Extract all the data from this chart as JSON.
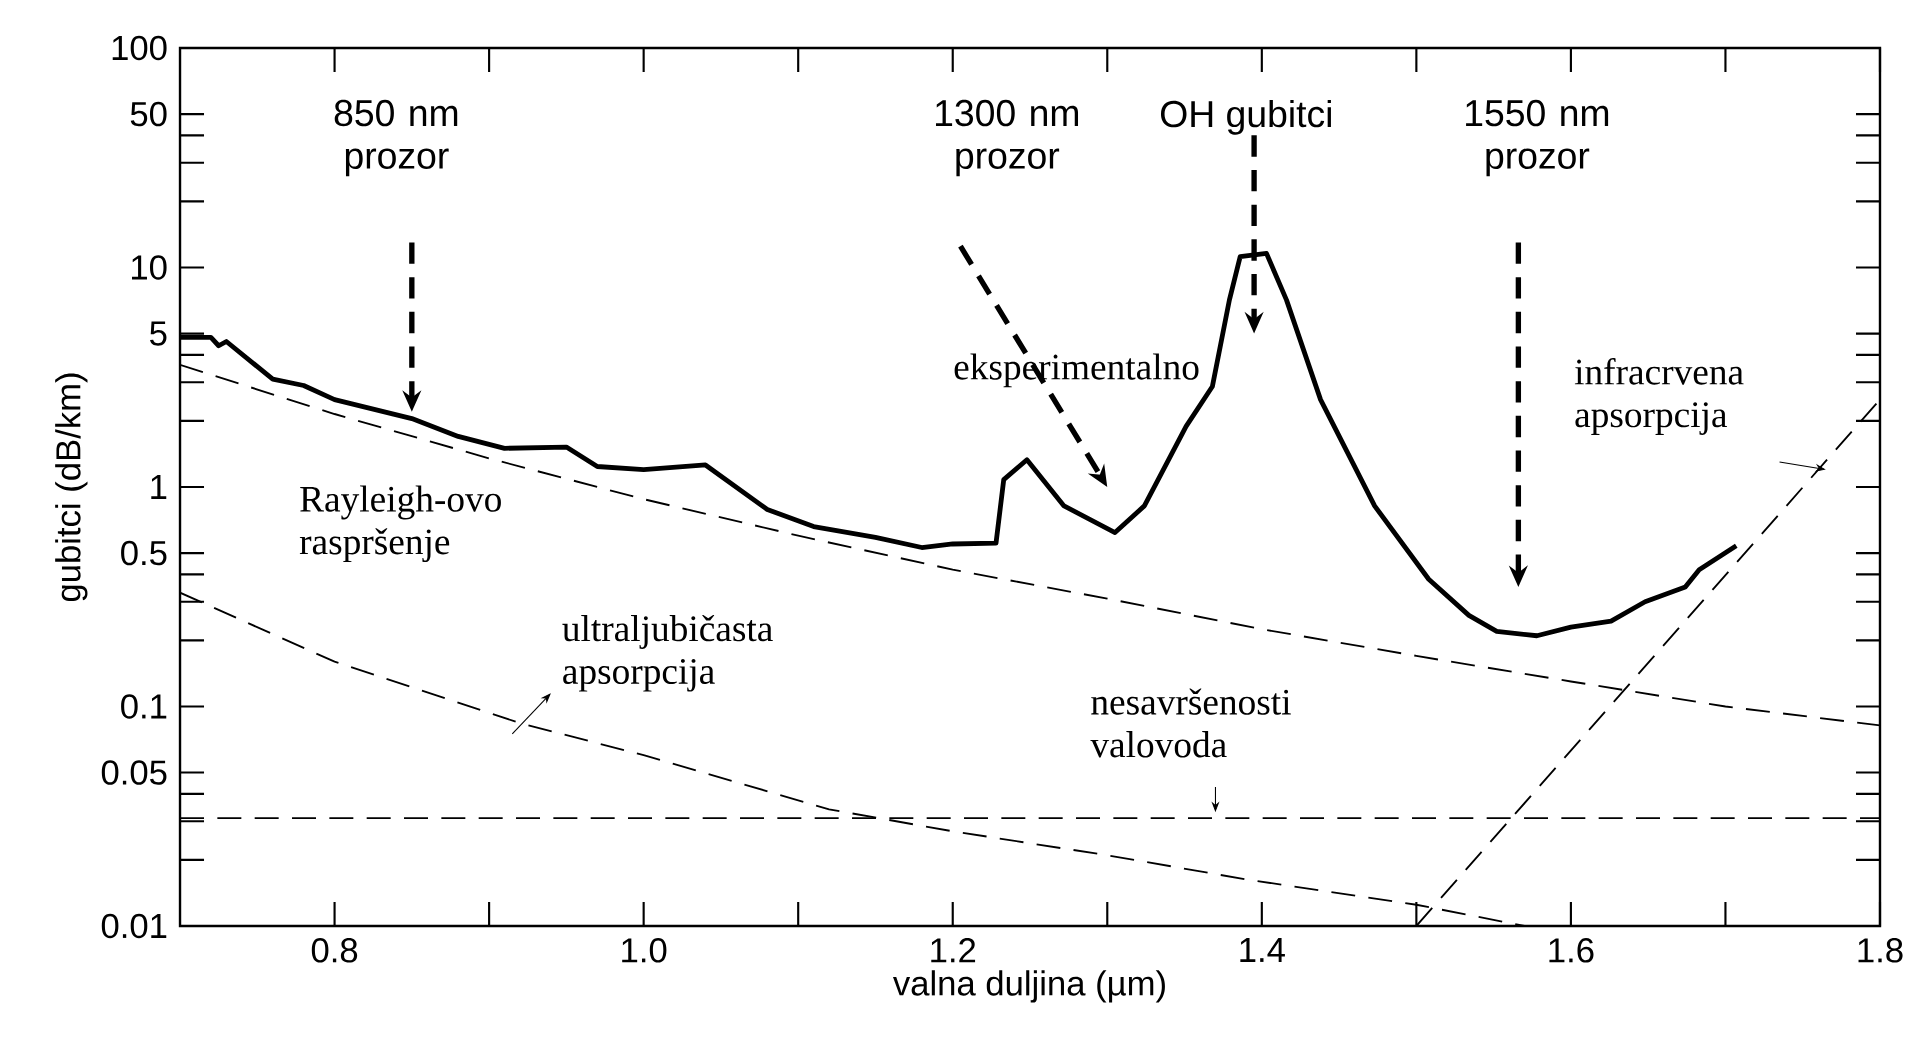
{
  "chart_data": {
    "type": "line",
    "xlabel": "valna duljina (µm)",
    "ylabel": "gubitci (dB/km)",
    "log": "y",
    "grid": false,
    "marker": "none",
    "xlim": [
      0.7,
      1.8
    ],
    "ylim": [
      0.01,
      100
    ],
    "xticks": [
      0.8,
      {
        "value": 0.9,
        "label": null
      },
      {
        "value": 1,
        "label": "1.0"
      },
      {
        "value": 1.1,
        "label": null
      },
      1.2,
      {
        "value": 1.3,
        "label": null
      },
      1.4,
      {
        "value": 1.5,
        "label": null
      },
      1.6,
      {
        "value": 1.7,
        "label": null
      },
      1.8
    ],
    "yticks": [
      0.01,
      {
        "value": 0.02,
        "label": null
      },
      {
        "value": 0.03,
        "label": null
      },
      {
        "value": 0.04,
        "label": null
      },
      0.05,
      0.1,
      {
        "value": 0.2,
        "label": null
      },
      {
        "value": 0.3,
        "label": null
      },
      {
        "value": 0.4,
        "label": null
      },
      0.5,
      1,
      {
        "value": 2,
        "label": null
      },
      {
        "value": 3,
        "label": null
      },
      {
        "value": 4,
        "label": null
      },
      5,
      10,
      {
        "value": 20,
        "label": null
      },
      {
        "value": 30,
        "label": null
      },
      {
        "value": 40,
        "label": null
      },
      50,
      100
    ],
    "series": [
      {
        "name": "eksperimentalno",
        "color": "#000000",
        "line_style": "solid",
        "x": [
          0.7,
          0.72,
          0.725,
          0.73,
          0.76,
          0.78,
          0.8,
          0.85,
          0.88,
          0.91,
          0.95,
          0.97,
          1.0,
          1.04,
          1.08,
          1.11,
          1.15,
          1.18,
          1.2,
          1.228,
          1.233,
          1.248,
          1.272,
          1.305,
          1.324,
          1.351,
          1.368,
          1.379,
          1.386,
          1.403,
          1.416,
          1.438,
          1.473,
          1.508,
          1.534,
          1.552,
          1.578,
          1.6,
          1.626,
          1.648,
          1.674,
          1.683,
          1.707
        ],
        "values": [
          4.8,
          4.8,
          4.4,
          4.6,
          3.1,
          2.9,
          2.5,
          2.05,
          1.7,
          1.5,
          1.52,
          1.24,
          1.2,
          1.26,
          0.79,
          0.66,
          0.59,
          0.53,
          0.55,
          0.555,
          1.08,
          1.33,
          0.82,
          0.62,
          0.82,
          1.89,
          2.87,
          7.1,
          11.2,
          11.6,
          7.1,
          2.5,
          0.82,
          0.38,
          0.26,
          0.22,
          0.21,
          0.23,
          0.245,
          0.3,
          0.35,
          0.42,
          0.54
        ]
      },
      {
        "name": "Rayleigh-ovo raspršenje",
        "color": "#000000",
        "line_style": "dashed",
        "x": [
          0.7,
          0.8,
          0.9,
          1.0,
          1.1,
          1.2,
          1.3,
          1.4,
          1.5,
          1.6,
          1.7,
          1.8
        ],
        "values": [
          3.6,
          2.15,
          1.35,
          0.88,
          0.6,
          0.42,
          0.31,
          0.225,
          0.17,
          0.13,
          0.1,
          0.082
        ]
      },
      {
        "name": "ultraljubičasta apsorpcija",
        "color": "#000000",
        "line_style": "dashed",
        "x": [
          0.7,
          0.8,
          0.92,
          1.0,
          1.12,
          1.2,
          1.3,
          1.39,
          1.5,
          1.57
        ],
        "values": [
          0.33,
          0.16,
          0.084,
          0.06,
          0.034,
          0.027,
          0.021,
          0.0163,
          0.0125,
          0.01
        ]
      },
      {
        "name": "nesavršenosti valovoda",
        "color": "#000000",
        "line_style": "dashed",
        "x": [
          0.7,
          1.8
        ],
        "values": [
          0.031,
          0.031
        ]
      },
      {
        "name": "infracrvena apsorpcija",
        "color": "#000000",
        "line_style": "dashed",
        "x": [
          1.5,
          1.8
        ],
        "values": [
          0.01,
          2.5
        ]
      }
    ],
    "annotations": [
      "850 nm prozor",
      "1300 nm prozor",
      "OH gubitci",
      "1550 nm prozor"
    ]
  }
}
